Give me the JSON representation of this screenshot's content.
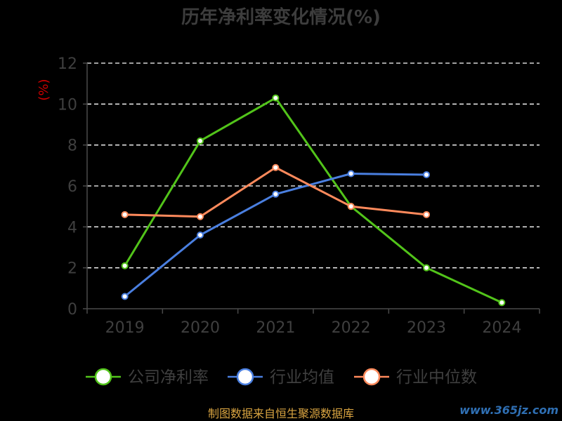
{
  "chart_data": {
    "type": "line",
    "title": "历年净利率变化情况(%)",
    "ylabel": "(%)",
    "categories": [
      "2019",
      "2020",
      "2021",
      "2022",
      "2023",
      "2024"
    ],
    "ylim": [
      0,
      12
    ],
    "yticks": [
      0,
      2,
      4,
      6,
      8,
      10,
      12
    ],
    "grid": true,
    "legend_position": "bottom",
    "series": [
      {
        "name": "公司净利率",
        "color": "#52c41a",
        "values": [
          2.1,
          8.2,
          10.3,
          5.0,
          2.0,
          0.3
        ]
      },
      {
        "name": "行业均值",
        "color": "#4a7fe0",
        "values": [
          0.6,
          3.6,
          5.6,
          6.6,
          6.55,
          null
        ]
      },
      {
        "name": "行业中位数",
        "color": "#ff8a5c",
        "values": [
          4.6,
          4.5,
          6.9,
          5.0,
          4.6,
          null
        ]
      }
    ]
  },
  "source_note": "制图数据来自恒生聚源数据库",
  "watermark": "www.365jz.com"
}
